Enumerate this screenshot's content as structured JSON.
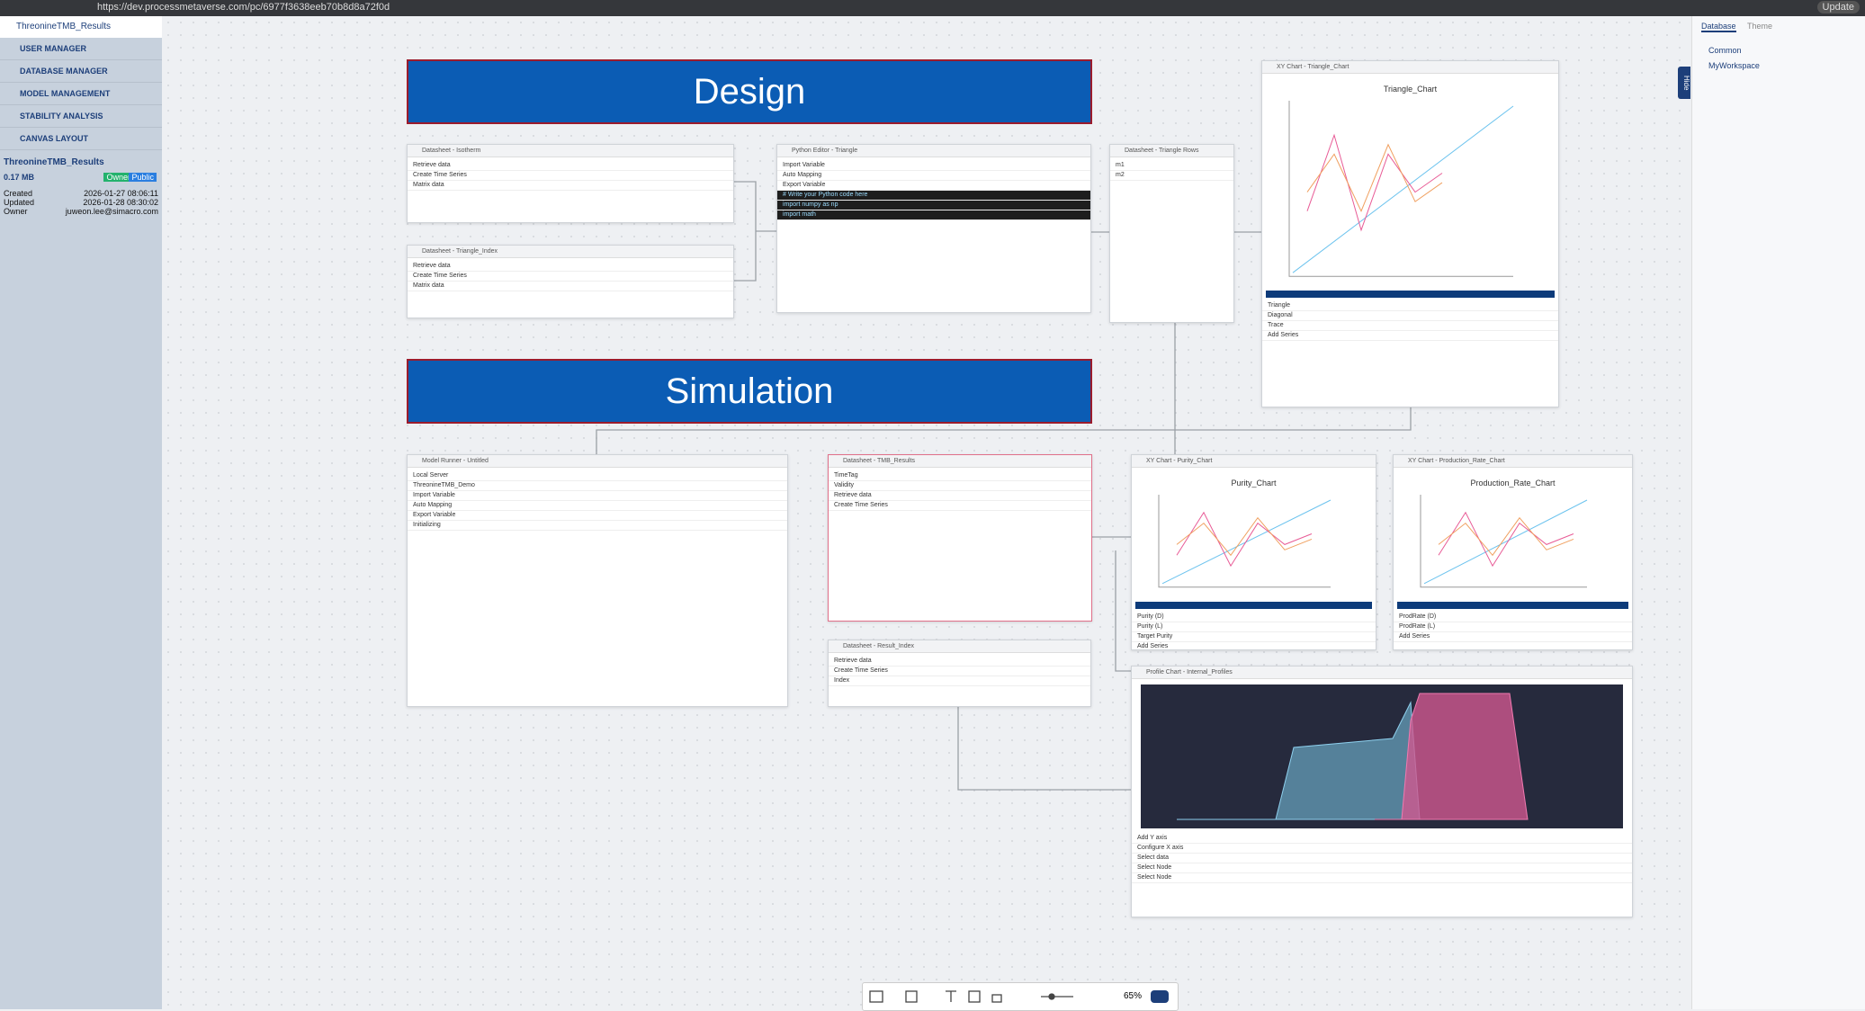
{
  "browser": {
    "url": "https://dev.processmetaverse.com/pc/6977f3638eeb70b8d8a72f0d",
    "update": "Update"
  },
  "sidebar": {
    "project": "ThreonineTMB_Results",
    "menu": [
      "USER MANAGER",
      "DATABASE MANAGER",
      "MODEL MANAGEMENT",
      "STABILITY ANALYSIS",
      "CANVAS LAYOUT"
    ],
    "info": {
      "name": "ThreonineTMB_Results",
      "size": "0.17 MB",
      "badges": [
        "Owner",
        "Public"
      ],
      "rows": [
        [
          "Created",
          "2026-01-27 08:06:11"
        ],
        [
          "Updated",
          "2026-01-28 08:30:02"
        ],
        [
          "Owner",
          "juweon.lee@simacro.com"
        ]
      ]
    }
  },
  "canvas": {
    "sections": [
      "Design",
      "Simulation"
    ],
    "panels": [
      {
        "title": "Datasheet - Isotherm",
        "kind": "table",
        "lines": [
          "Retrieve data",
          "Create Time Series",
          "Matrix data"
        ]
      },
      {
        "title": "Datasheet - Triangle_Index",
        "kind": "table",
        "lines": [
          "Retrieve data",
          "Create Time Series",
          "Matrix data"
        ]
      },
      {
        "title": "Python Editor - Triangle",
        "kind": "code",
        "lines": [
          "Import Variable",
          "Auto Mapping",
          "Export Variable",
          "# Write your Python code here",
          "import numpy as np",
          "import math"
        ]
      },
      {
        "title": "Datasheet - Triangle Rows",
        "kind": "table",
        "lines": [
          "m1",
          "m2"
        ]
      },
      {
        "title": "XY Chart - Triangle_Chart",
        "kind": "chart",
        "chart_title": "Triangle_Chart",
        "lines": [
          "Triangle",
          "Diagonal",
          "Trace",
          "Add Series"
        ]
      },
      {
        "title": "Model Runner - Untitled",
        "kind": "table",
        "lines": [
          "Local Server",
          "ThreonineTMB_Demo",
          "Import Variable",
          "Auto Mapping",
          "Export Variable",
          "Initializing"
        ]
      },
      {
        "title": "Datasheet - TMB_Results",
        "kind": "table",
        "lines": [
          "TimeTag",
          "Validity",
          "Retrieve data",
          "Create Time Series"
        ]
      },
      {
        "title": "Datasheet - Result_Index",
        "kind": "table",
        "lines": [
          "Retrieve data",
          "Create Time Series",
          "Index"
        ]
      },
      {
        "title": "XY Chart - Purity_Chart",
        "kind": "chart",
        "chart_title": "Purity_Chart",
        "lines": [
          "Purity (D)",
          "Purity (L)",
          "Target Purity",
          "Add Series"
        ]
      },
      {
        "title": "XY Chart - Production_Rate_Chart",
        "kind": "chart",
        "chart_title": "Production_Rate_Chart",
        "lines": [
          "ProdRate (D)",
          "ProdRate (L)",
          "Add Series"
        ]
      },
      {
        "title": "Profile Chart - Internal_Profiles",
        "kind": "profile",
        "lines": [
          "Add Y axis",
          "Configure X axis",
          "Select data",
          "Select Node",
          "Select Node"
        ]
      }
    ]
  },
  "right_panel": {
    "tabs": [
      "Database",
      "Theme"
    ],
    "tree": [
      "Common",
      "MyWorkspace"
    ],
    "hide": "Hide"
  },
  "toolbar": {
    "zoom": "65%"
  }
}
